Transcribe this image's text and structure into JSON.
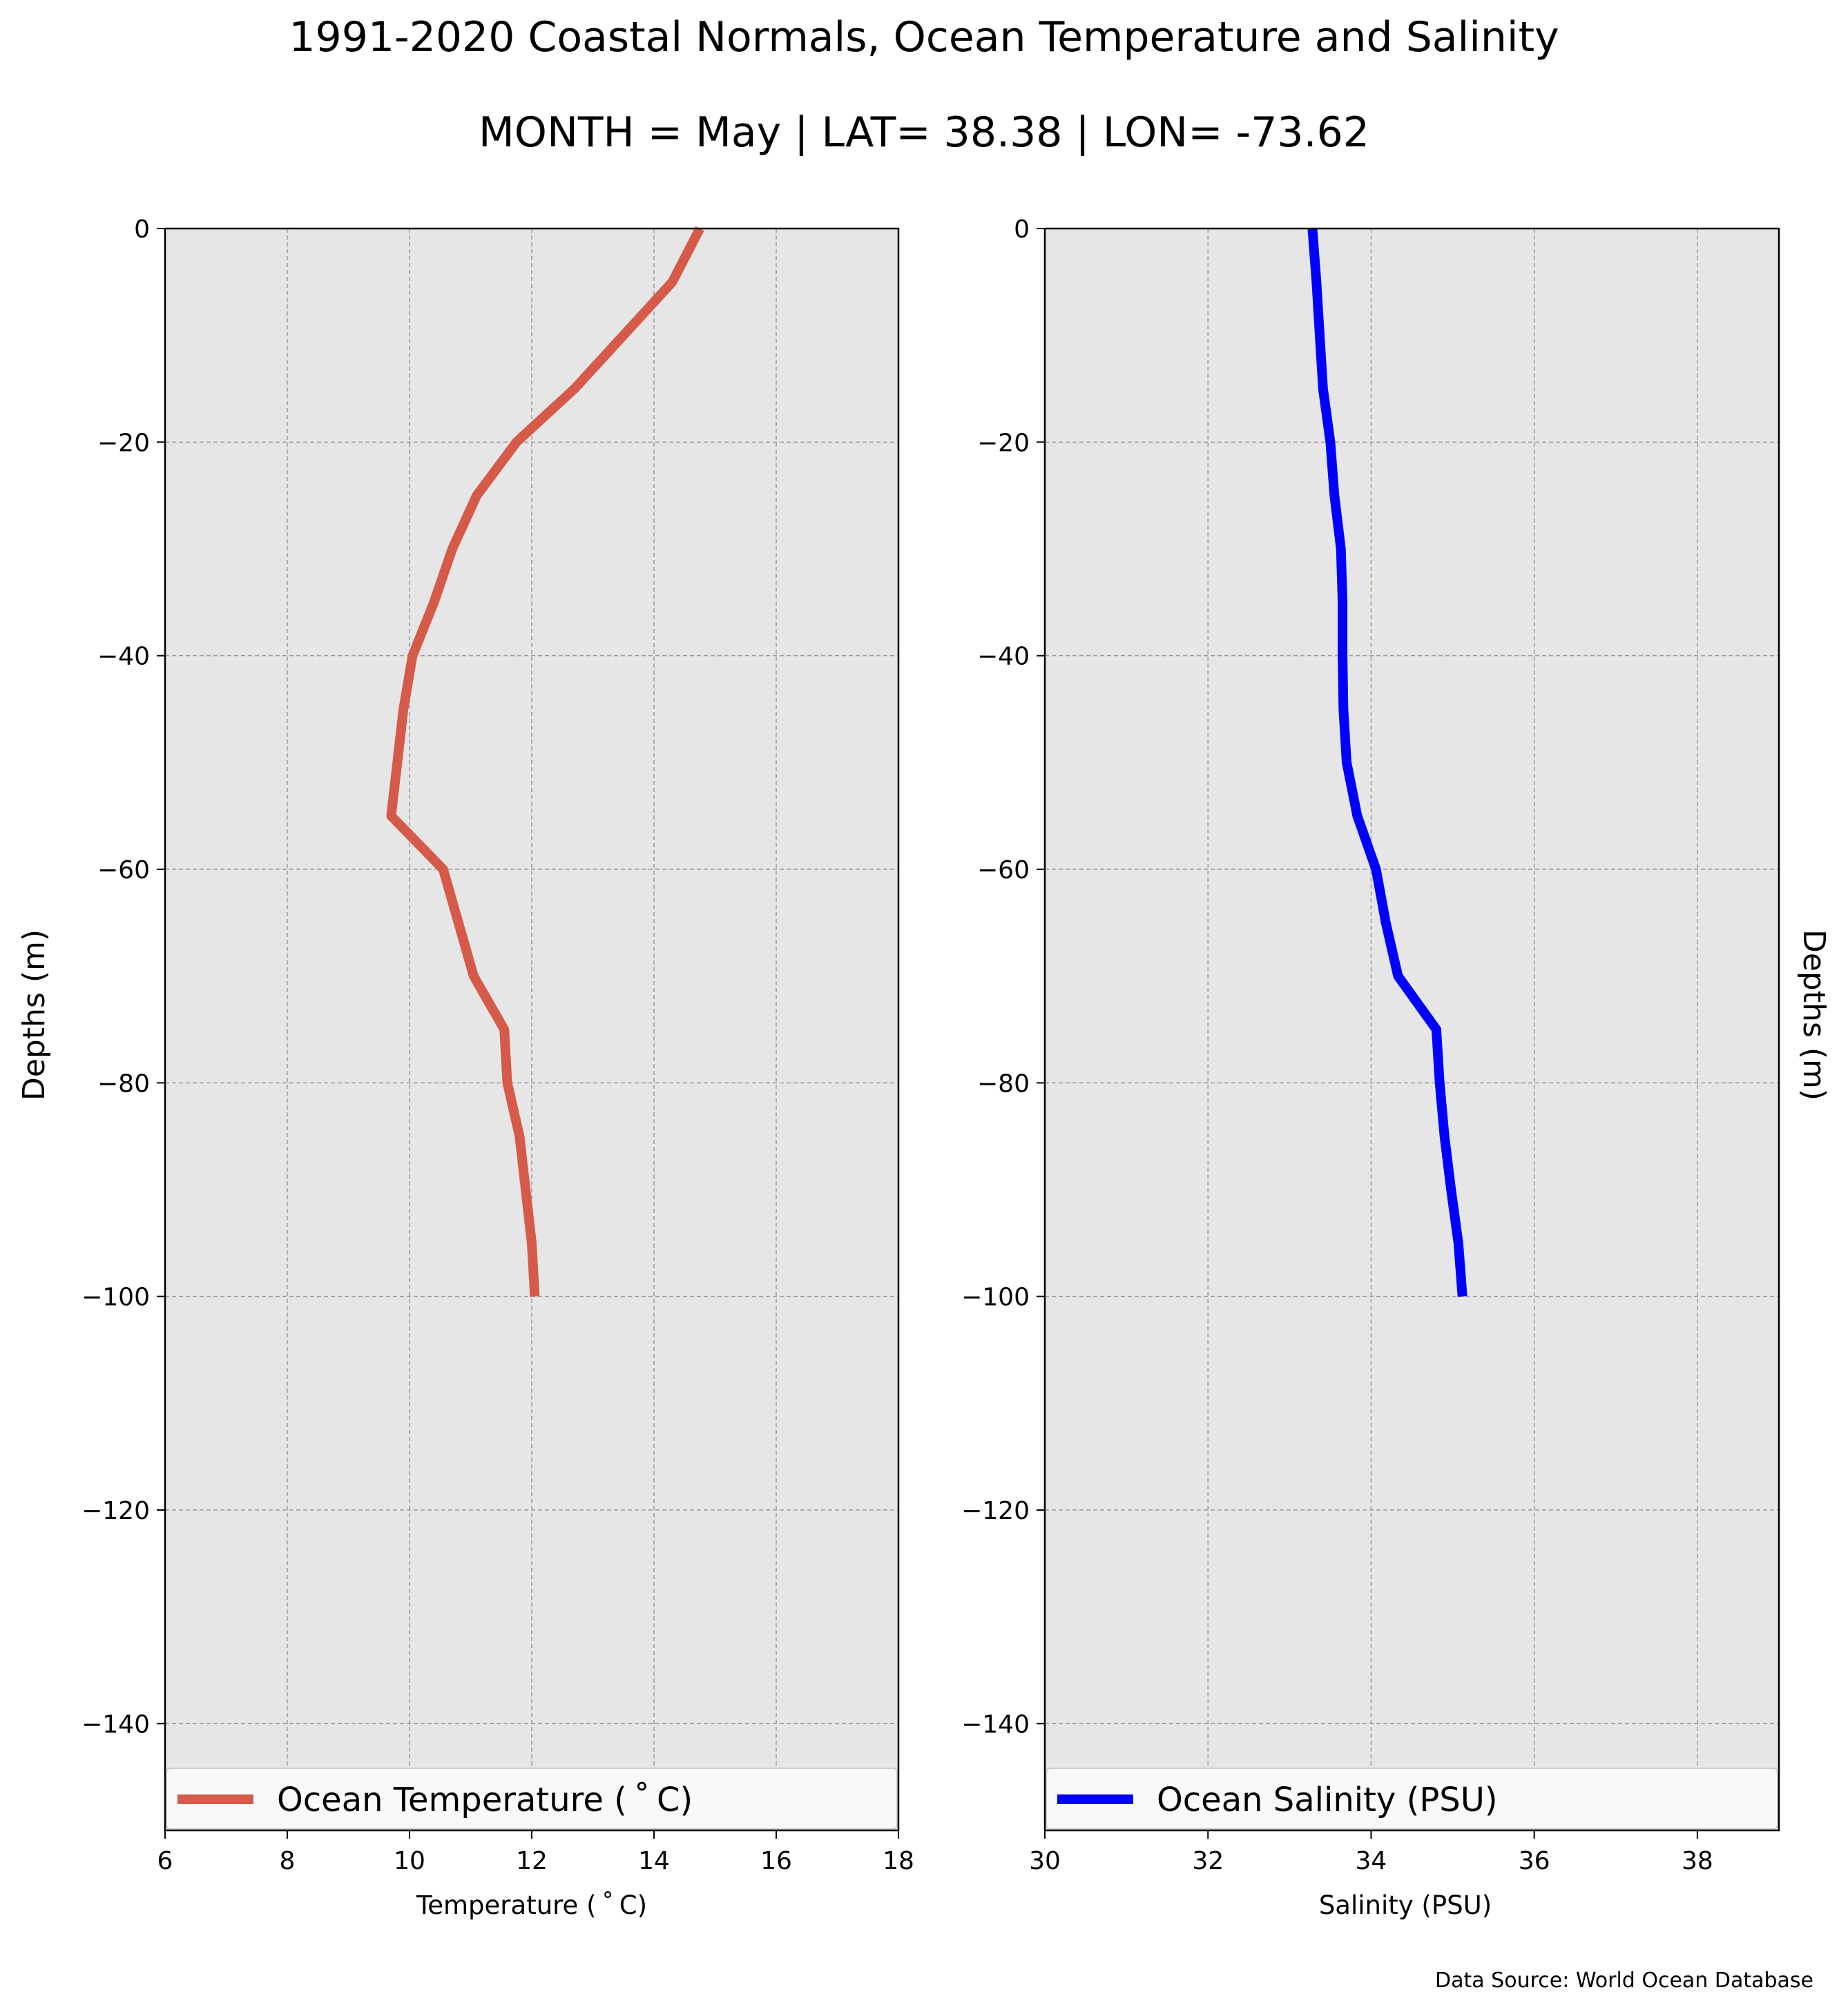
{
  "figure": {
    "title_line1": "1991-2020 Coastal Normals, Ocean Temperature and Salinity",
    "title_line2": "MONTH = May | LAT= 38.38 | LON= -73.62",
    "source": "Data Source: World Ocean Database"
  },
  "colors": {
    "panel_background": "#e6e6e6",
    "grid": "#9a9a9a",
    "temperature_line": "#d65a4a",
    "salinity_line": "#0000ff"
  },
  "chart_data": [
    {
      "type": "line",
      "title": "",
      "xlabel": "Temperature ($^\\circ$C)",
      "xlabel_text": "Temperature ( ˚ C)",
      "ylabel": "Depths (m)",
      "xlim": [
        6,
        18
      ],
      "ylim": [
        -150,
        0
      ],
      "x_ticks": [
        "6",
        "8",
        "10",
        "12",
        "14",
        "16",
        "18"
      ],
      "x_tick_values": [
        6,
        8,
        10,
        12,
        14,
        16,
        18
      ],
      "y_ticks": [
        "0",
        "−20",
        "−40",
        "−60",
        "−80",
        "−100",
        "−120",
        "−140"
      ],
      "y_tick_values": [
        0,
        -20,
        -40,
        -60,
        -80,
        -100,
        -120,
        -140
      ],
      "grid": true,
      "legend_position": "bottom",
      "series": [
        {
          "name": "Ocean Temperature ( ˚ C)",
          "color": "#d65a4a",
          "x": [
            14.75,
            14.3,
            13.5,
            12.7,
            11.75,
            11.1,
            10.7,
            10.4,
            10.05,
            9.9,
            9.8,
            9.7,
            10.55,
            10.8,
            11.05,
            11.55,
            11.6,
            11.8,
            11.9,
            12.0,
            12.05
          ],
          "y": [
            0,
            -5,
            -10,
            -15,
            -20,
            -25,
            -30,
            -35,
            -40,
            -45,
            -50,
            -55,
            -60,
            -65,
            -70,
            -75,
            -80,
            -85,
            -90,
            -95,
            -100
          ]
        }
      ]
    },
    {
      "type": "line",
      "title": "",
      "xlabel": "Salinity (PSU)",
      "xlabel_text": "Salinity (PSU)",
      "ylabel": "Depths (m)",
      "xlim": [
        30,
        39
      ],
      "ylim": [
        -150,
        0
      ],
      "x_ticks": [
        "30",
        "32",
        "34",
        "36",
        "38"
      ],
      "x_tick_values": [
        30,
        32,
        34,
        36,
        38
      ],
      "y_ticks": [
        "0",
        "−20",
        "−40",
        "−60",
        "−80",
        "−100",
        "−120",
        "−140"
      ],
      "y_tick_values": [
        0,
        -20,
        -40,
        -60,
        -80,
        -100,
        -120,
        -140
      ],
      "grid": true,
      "legend_position": "bottom",
      "series": [
        {
          "name": "Ocean Salinity (PSU)",
          "color": "#0000ff",
          "x": [
            33.28,
            33.33,
            33.37,
            33.41,
            33.5,
            33.55,
            33.63,
            33.65,
            33.65,
            33.66,
            33.7,
            33.83,
            34.06,
            34.18,
            34.33,
            34.8,
            34.84,
            34.9,
            34.98,
            35.07,
            35.12
          ],
          "y": [
            0,
            -5,
            -10,
            -15,
            -20,
            -25,
            -30,
            -35,
            -40,
            -45,
            -50,
            -55,
            -60,
            -65,
            -70,
            -75,
            -80,
            -85,
            -90,
            -95,
            -100
          ]
        }
      ]
    }
  ]
}
